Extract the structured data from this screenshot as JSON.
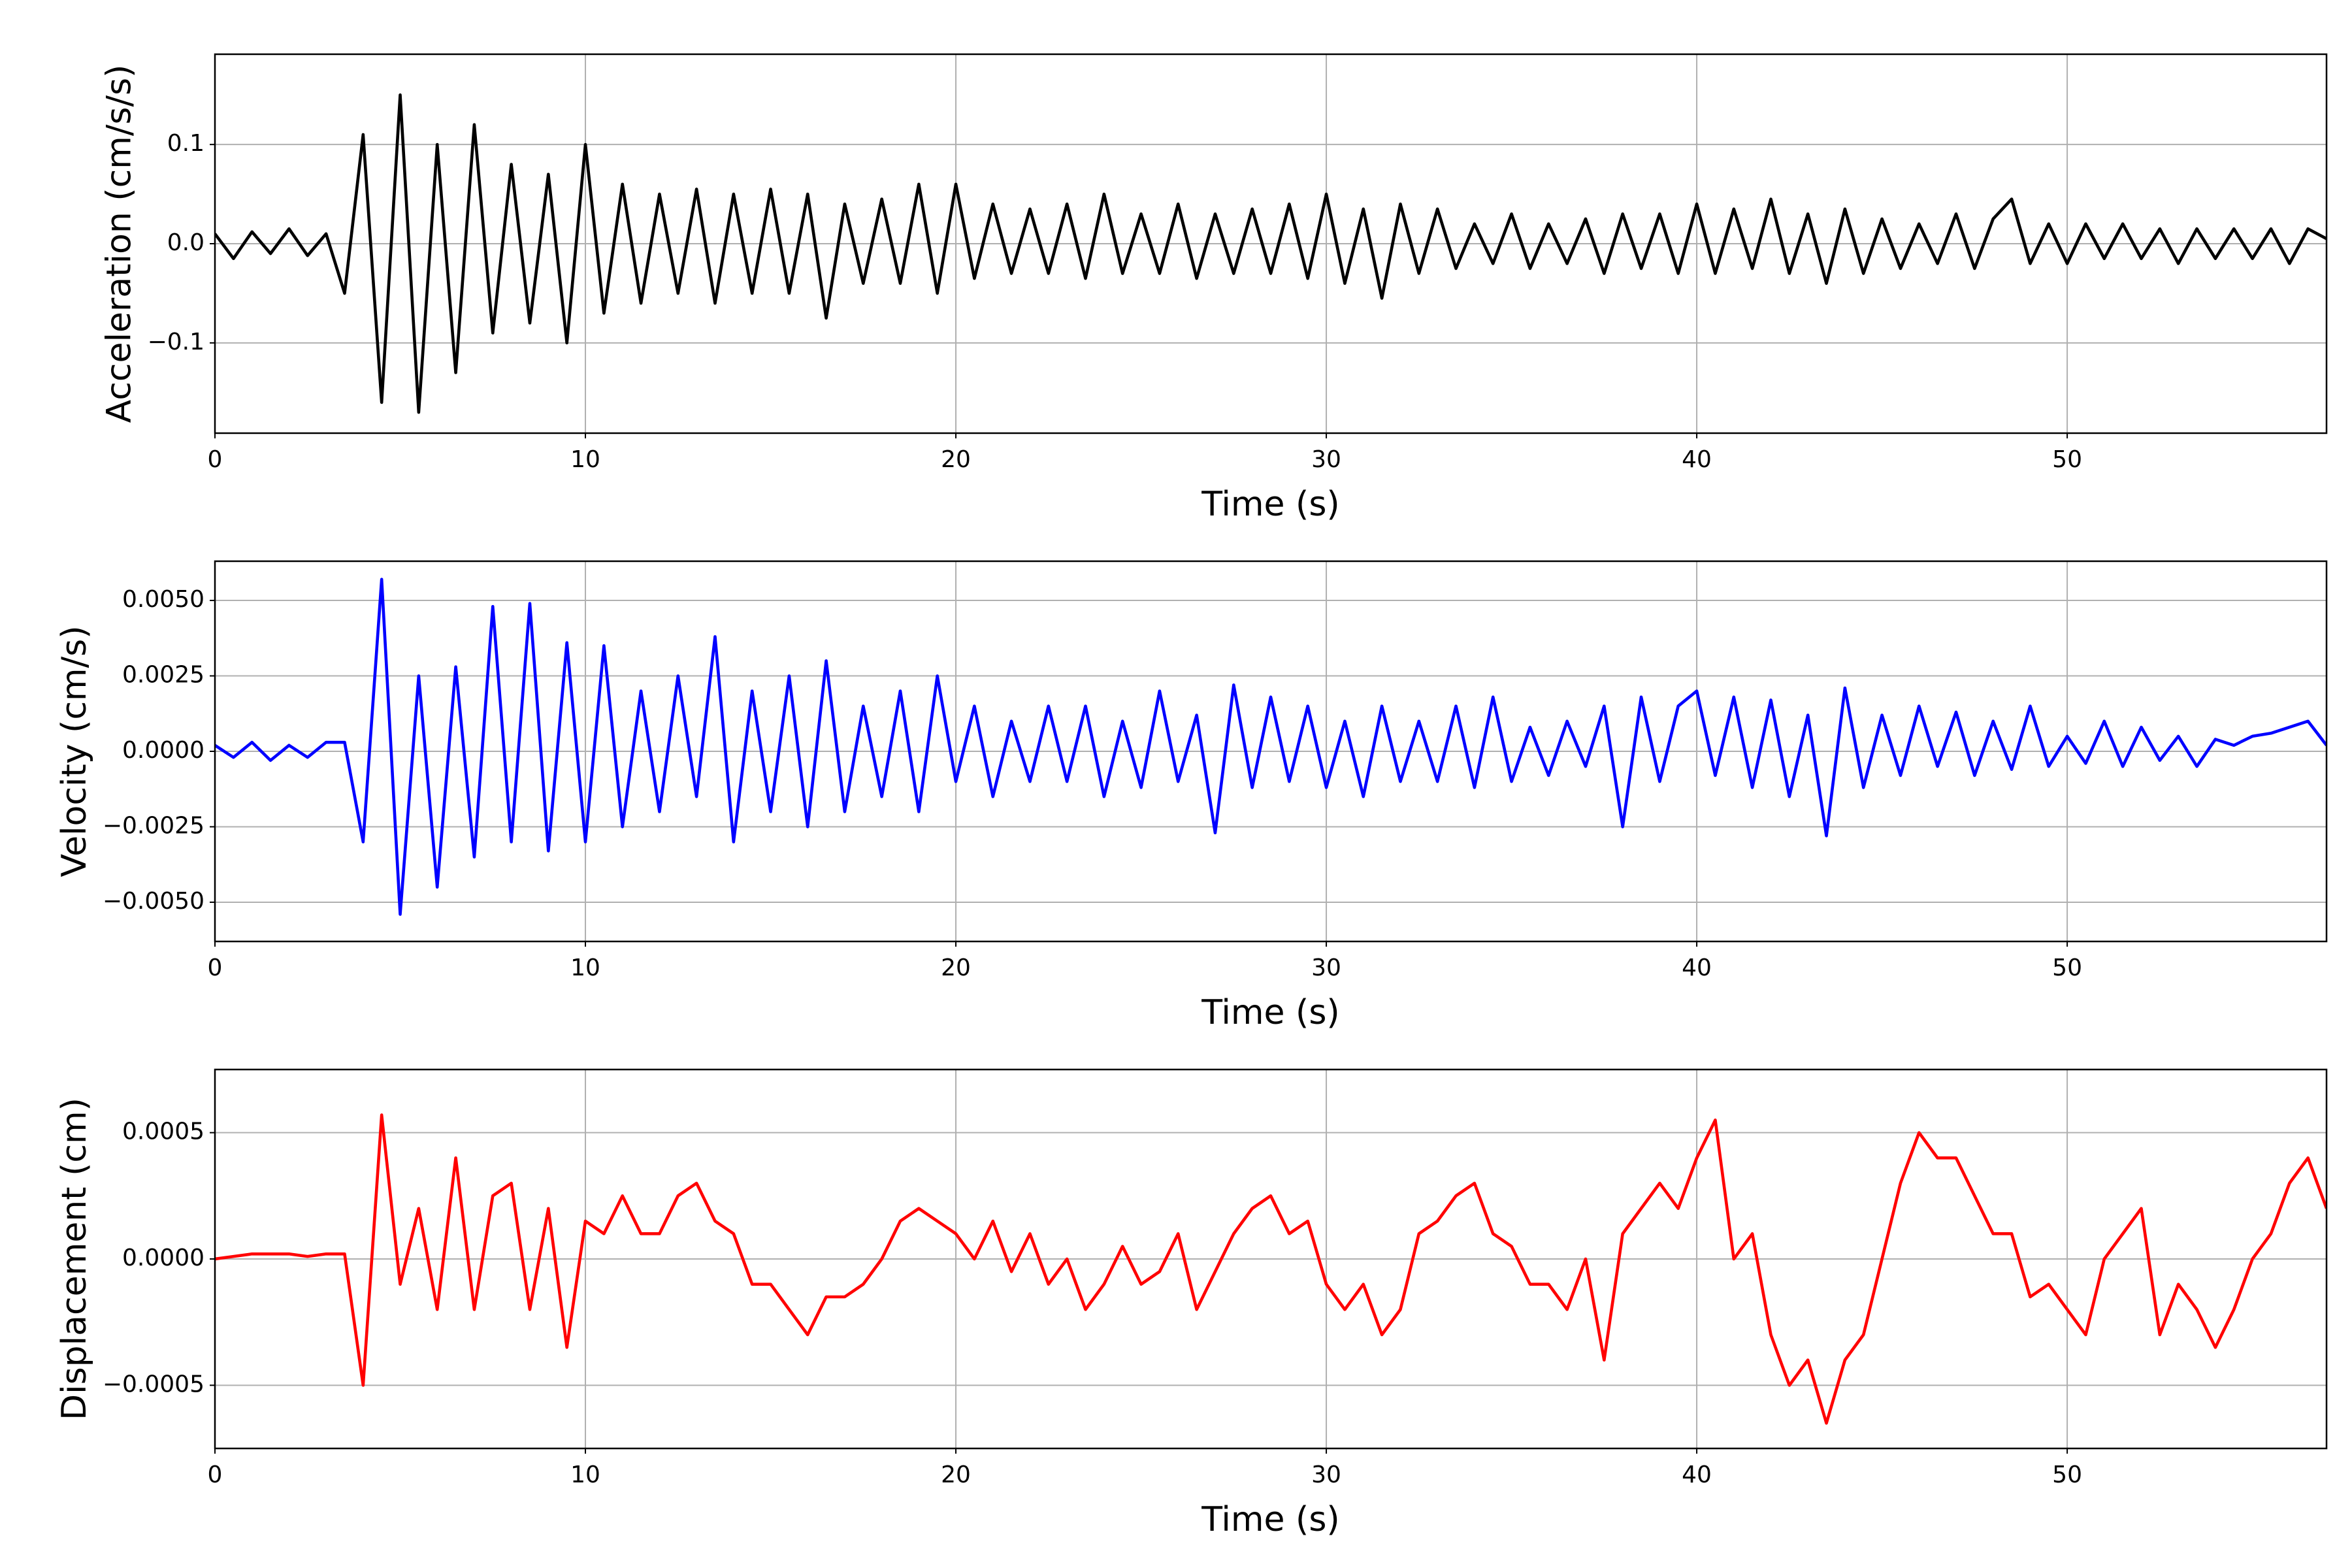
{
  "chart_data": [
    {
      "type": "line",
      "xlabel": "Time (s)",
      "ylabel": "Acceleration (cm/s/s)",
      "grid": true,
      "xlim": [
        0,
        57
      ],
      "xticks": [
        0,
        10,
        20,
        30,
        40,
        50
      ],
      "ylim": [
        -0.191,
        0.191
      ],
      "yticks": [
        {
          "value": -0.1,
          "label": "−0.1"
        },
        {
          "value": 0,
          "label": "0.0"
        },
        0.1
      ],
      "x": [
        0,
        0.5,
        1,
        1.5,
        2,
        2.5,
        3,
        3.5,
        4,
        4.5,
        5,
        5.5,
        6,
        6.5,
        7,
        7.5,
        8,
        8.5,
        9,
        9.5,
        10,
        10.5,
        11,
        11.5,
        12,
        12.5,
        13,
        13.5,
        14,
        14.5,
        15,
        15.5,
        16,
        16.5,
        17,
        17.5,
        18,
        18.5,
        19,
        19.5,
        20,
        20.5,
        21,
        21.5,
        22,
        22.5,
        23,
        23.5,
        24,
        24.5,
        25,
        25.5,
        26,
        26.5,
        27,
        27.5,
        28,
        28.5,
        29,
        29.5,
        30,
        30.5,
        31,
        31.5,
        32,
        32.5,
        33,
        33.5,
        34,
        34.5,
        35,
        35.5,
        36,
        36.5,
        37,
        37.5,
        38,
        38.5,
        39,
        39.5,
        40,
        40.5,
        41,
        41.5,
        42,
        42.5,
        43,
        43.5,
        44,
        44.5,
        45,
        45.5,
        46,
        46.5,
        47,
        47.5,
        48,
        48.5,
        49,
        49.5,
        50,
        50.5,
        51,
        51.5,
        52,
        52.5,
        53,
        53.5,
        54,
        54.5,
        55,
        55.5,
        56,
        56.5,
        57
      ],
      "series": [
        {
          "color": "#000000",
          "values": [
            0.01,
            -0.015,
            0.012,
            -0.01,
            0.015,
            -0.012,
            0.01,
            -0.05,
            0.11,
            -0.16,
            0.15,
            -0.17,
            0.1,
            -0.13,
            0.12,
            -0.09,
            0.08,
            -0.08,
            0.07,
            -0.1,
            0.1,
            -0.07,
            0.06,
            -0.06,
            0.05,
            -0.05,
            0.055,
            -0.06,
            0.05,
            -0.05,
            0.055,
            -0.05,
            0.05,
            -0.075,
            0.04,
            -0.04,
            0.045,
            -0.04,
            0.06,
            -0.05,
            0.06,
            -0.035,
            0.04,
            -0.03,
            0.035,
            -0.03,
            0.04,
            -0.035,
            0.05,
            -0.03,
            0.03,
            -0.03,
            0.04,
            -0.035,
            0.03,
            -0.03,
            0.035,
            -0.03,
            0.04,
            -0.035,
            0.05,
            -0.04,
            0.035,
            -0.055,
            0.04,
            -0.03,
            0.035,
            -0.025,
            0.02,
            -0.02,
            0.03,
            -0.025,
            0.02,
            -0.02,
            0.025,
            -0.03,
            0.03,
            -0.025,
            0.03,
            -0.03,
            0.04,
            -0.03,
            0.035,
            -0.025,
            0.045,
            -0.03,
            0.03,
            -0.04,
            0.035,
            -0.03,
            0.025,
            -0.025,
            0.02,
            -0.02,
            0.03,
            -0.025,
            0.025,
            0.045,
            -0.02,
            0.02,
            -0.02,
            0.02,
            -0.015,
            0.02,
            -0.015,
            0.015,
            -0.02,
            0.015,
            -0.015,
            0.015,
            -0.015,
            0.015,
            -0.02,
            0.015,
            0.005
          ]
        }
      ]
    },
    {
      "type": "line",
      "xlabel": "Time (s)",
      "ylabel": "Velocity (cm/s)",
      "grid": true,
      "xlim": [
        0,
        57
      ],
      "xticks": [
        0,
        10,
        20,
        30,
        40,
        50
      ],
      "ylim": [
        -0.0063,
        0.0063
      ],
      "yticks": [
        {
          "value": -0.005,
          "label": "−0.0050"
        },
        {
          "value": -0.0025,
          "label": "−0.0025"
        },
        {
          "value": 0,
          "label": "0.0000"
        },
        {
          "value": 0.0025,
          "label": "0.0025"
        },
        {
          "value": 0.005,
          "label": "0.0050"
        }
      ],
      "x": [
        0,
        0.5,
        1,
        1.5,
        2,
        2.5,
        3,
        3.5,
        4,
        4.5,
        5,
        5.5,
        6,
        6.5,
        7,
        7.5,
        8,
        8.5,
        9,
        9.5,
        10,
        10.5,
        11,
        11.5,
        12,
        12.5,
        13,
        13.5,
        14,
        14.5,
        15,
        15.5,
        16,
        16.5,
        17,
        17.5,
        18,
        18.5,
        19,
        19.5,
        20,
        20.5,
        21,
        21.5,
        22,
        22.5,
        23,
        23.5,
        24,
        24.5,
        25,
        25.5,
        26,
        26.5,
        27,
        27.5,
        28,
        28.5,
        29,
        29.5,
        30,
        30.5,
        31,
        31.5,
        32,
        32.5,
        33,
        33.5,
        34,
        34.5,
        35,
        35.5,
        36,
        36.5,
        37,
        37.5,
        38,
        38.5,
        39,
        39.5,
        40,
        40.5,
        41,
        41.5,
        42,
        42.5,
        43,
        43.5,
        44,
        44.5,
        45,
        45.5,
        46,
        46.5,
        47,
        47.5,
        48,
        48.5,
        49,
        49.5,
        50,
        50.5,
        51,
        51.5,
        52,
        52.5,
        53,
        53.5,
        54,
        54.5,
        55,
        55.5,
        56,
        56.5,
        57
      ],
      "series": [
        {
          "color": "#0000ff",
          "values": [
            0.0002,
            -0.0002,
            0.0003,
            -0.0003,
            0.0002,
            -0.0002,
            0.0003,
            0.0003,
            -0.003,
            0.0057,
            -0.0054,
            0.0025,
            -0.0045,
            0.0028,
            -0.0035,
            0.0048,
            -0.003,
            0.0049,
            -0.0033,
            0.0036,
            -0.003,
            0.0035,
            -0.0025,
            0.002,
            -0.002,
            0.0025,
            -0.0015,
            0.0038,
            -0.003,
            0.002,
            -0.002,
            0.0025,
            -0.0025,
            0.003,
            -0.002,
            0.0015,
            -0.0015,
            0.002,
            -0.002,
            0.0025,
            -0.001,
            0.0015,
            -0.0015,
            0.001,
            -0.001,
            0.0015,
            -0.001,
            0.0015,
            -0.0015,
            0.001,
            -0.0012,
            0.002,
            -0.001,
            0.0012,
            -0.0027,
            0.0022,
            -0.0012,
            0.0018,
            -0.001,
            0.0015,
            -0.0012,
            0.001,
            -0.0015,
            0.0015,
            -0.001,
            0.001,
            -0.001,
            0.0015,
            -0.0012,
            0.0018,
            -0.001,
            0.0008,
            -0.0008,
            0.001,
            -0.0005,
            0.0015,
            -0.0025,
            0.0018,
            -0.001,
            0.0015,
            0.002,
            -0.0008,
            0.0018,
            -0.0012,
            0.0017,
            -0.0015,
            0.0012,
            -0.0028,
            0.0021,
            -0.0012,
            0.0012,
            -0.0008,
            0.0015,
            -0.0005,
            0.0013,
            -0.0008,
            0.001,
            -0.0006,
            0.0015,
            -0.0005,
            0.0005,
            -0.0004,
            0.001,
            -0.0005,
            0.0008,
            -0.0003,
            0.0005,
            -0.0005,
            0.0004,
            0.0002,
            0.0005,
            0.0006,
            0.0008,
            0.001,
            0.0002
          ]
        }
      ]
    },
    {
      "type": "line",
      "xlabel": "Time (s)",
      "ylabel": "Displacement (cm)",
      "grid": true,
      "xlim": [
        0,
        57
      ],
      "xticks": [
        0,
        10,
        20,
        30,
        40,
        50
      ],
      "ylim": [
        -0.00075,
        0.00075
      ],
      "yticks": [
        {
          "value": -0.0005,
          "label": "−0.0005"
        },
        {
          "value": 0,
          "label": "0.0000"
        },
        {
          "value": 0.0005,
          "label": "0.0005"
        }
      ],
      "x": [
        0,
        0.5,
        1,
        1.5,
        2,
        2.5,
        3,
        3.5,
        4,
        4.5,
        5,
        5.5,
        6,
        6.5,
        7,
        7.5,
        8,
        8.5,
        9,
        9.5,
        10,
        10.5,
        11,
        11.5,
        12,
        12.5,
        13,
        13.5,
        14,
        14.5,
        15,
        15.5,
        16,
        16.5,
        17,
        17.5,
        18,
        18.5,
        19,
        19.5,
        20,
        20.5,
        21,
        21.5,
        22,
        22.5,
        23,
        23.5,
        24,
        24.5,
        25,
        25.5,
        26,
        26.5,
        27,
        27.5,
        28,
        28.5,
        29,
        29.5,
        30,
        30.5,
        31,
        31.5,
        32,
        32.5,
        33,
        33.5,
        34,
        34.5,
        35,
        35.5,
        36,
        36.5,
        37,
        37.5,
        38,
        38.5,
        39,
        39.5,
        40,
        40.5,
        41,
        41.5,
        42,
        42.5,
        43,
        43.5,
        44,
        44.5,
        45,
        45.5,
        46,
        46.5,
        47,
        47.5,
        48,
        48.5,
        49,
        49.5,
        50,
        50.5,
        51,
        51.5,
        52,
        52.5,
        53,
        53.5,
        54,
        54.5,
        55,
        55.5,
        56,
        56.5,
        57
      ],
      "series": [
        {
          "color": "#ff0000",
          "values": [
            0,
            1e-05,
            2e-05,
            2e-05,
            2e-05,
            1e-05,
            2e-05,
            2e-05,
            -0.0005,
            0.00057,
            -0.0001,
            0.0002,
            -0.0002,
            0.0004,
            -0.0002,
            0.00025,
            0.0003,
            -0.0002,
            0.0002,
            -0.00035,
            0.00015,
            0.0001,
            0.00025,
            0.0001,
            0.0001,
            0.00025,
            0.0003,
            0.00015,
            0.0001,
            -0.0001,
            -0.0001,
            -0.0002,
            -0.0003,
            -0.00015,
            -0.00015,
            -0.0001,
            0,
            0.00015,
            0.0002,
            0.00015,
            0.0001,
            0,
            0.00015,
            -5e-05,
            0.0001,
            -0.0001,
            0,
            -0.0002,
            -0.0001,
            5e-05,
            -0.0001,
            -5e-05,
            0.0001,
            -0.0002,
            -5e-05,
            0.0001,
            0.0002,
            0.00025,
            0.0001,
            0.00015,
            -0.0001,
            -0.0002,
            -0.0001,
            -0.0003,
            -0.0002,
            0.0001,
            0.00015,
            0.00025,
            0.0003,
            0.0001,
            5e-05,
            -0.0001,
            -0.0001,
            -0.0002,
            0,
            -0.0004,
            0.0001,
            0.0002,
            0.0003,
            0.0002,
            0.0004,
            0.00055,
            0,
            0.0001,
            -0.0003,
            -0.0005,
            -0.0004,
            -0.00065,
            -0.0004,
            -0.0003,
            0,
            0.0003,
            0.0005,
            0.0004,
            0.0004,
            0.00025,
            0.0001,
            0.0001,
            -0.00015,
            -0.0001,
            -0.0002,
            -0.0003,
            0,
            0.0001,
            0.0002,
            -0.0003,
            -0.0001,
            -0.0002,
            -0.00035,
            -0.0002,
            0,
            0.0001,
            0.0003,
            0.0004,
            0.0002
          ]
        }
      ]
    }
  ]
}
